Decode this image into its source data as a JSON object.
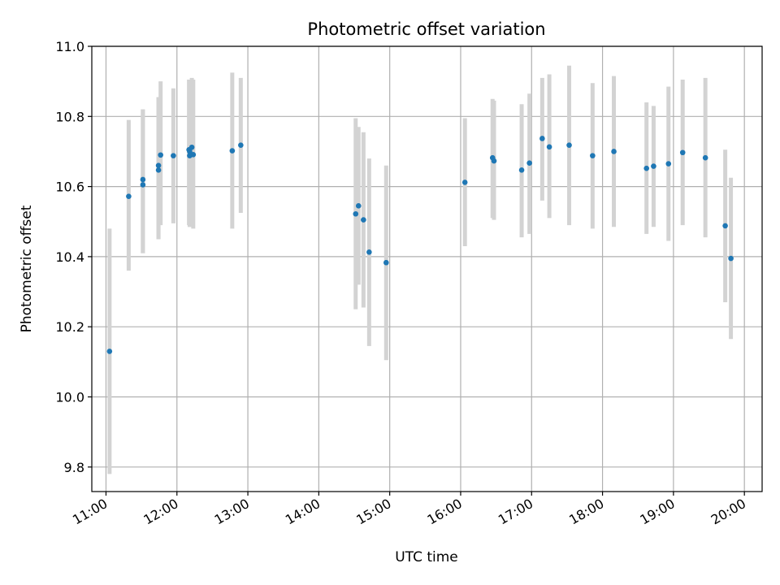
{
  "chart_data": {
    "type": "scatter",
    "title": "Photometric offset variation",
    "xlabel": "UTC time",
    "ylabel": "Photometric offset",
    "x_unit": "hour",
    "xlim": [
      10.8,
      20.25
    ],
    "ylim": [
      9.73,
      11.0
    ],
    "yticks": [
      9.8,
      10.0,
      10.2,
      10.4,
      10.6,
      10.8,
      11.0
    ],
    "ytick_labels": [
      "9.8",
      "10.0",
      "10.2",
      "10.4",
      "10.6",
      "10.8",
      "11.0"
    ],
    "xticks": [
      11,
      12,
      13,
      14,
      15,
      16,
      17,
      18,
      19,
      20
    ],
    "xtick_labels": [
      "11:00",
      "12:00",
      "13:00",
      "14:00",
      "15:00",
      "16:00",
      "17:00",
      "18:00",
      "19:00",
      "20:00"
    ],
    "grid": true,
    "colors": {
      "point": "#1f77b4",
      "errorbar": "#d3d3d3",
      "grid": "#b0b0b0"
    },
    "points": [
      {
        "x": 11.05,
        "y": 10.13,
        "lo": 9.78,
        "hi": 10.48
      },
      {
        "x": 11.32,
        "y": 10.572,
        "lo": 10.36,
        "hi": 10.79
      },
      {
        "x": 11.52,
        "y": 10.62,
        "lo": 10.41,
        "hi": 10.82
      },
      {
        "x": 11.52,
        "y": 10.605,
        "lo": 10.41,
        "hi": 10.82
      },
      {
        "x": 11.74,
        "y": 10.66,
        "lo": 10.45,
        "hi": 10.855
      },
      {
        "x": 11.74,
        "y": 10.647,
        "lo": 10.45,
        "hi": 10.855
      },
      {
        "x": 11.77,
        "y": 10.69,
        "lo": 10.49,
        "hi": 10.9
      },
      {
        "x": 11.95,
        "y": 10.688,
        "lo": 10.495,
        "hi": 10.88
      },
      {
        "x": 12.17,
        "y": 10.705,
        "lo": 10.49,
        "hi": 10.905
      },
      {
        "x": 12.18,
        "y": 10.688,
        "lo": 10.485,
        "hi": 10.905
      },
      {
        "x": 12.18,
        "y": 10.7,
        "lo": 10.485,
        "hi": 10.905
      },
      {
        "x": 12.21,
        "y": 10.712,
        "lo": 10.49,
        "hi": 10.91
      },
      {
        "x": 12.23,
        "y": 10.691,
        "lo": 10.48,
        "hi": 10.905
      },
      {
        "x": 12.78,
        "y": 10.702,
        "lo": 10.48,
        "hi": 10.925
      },
      {
        "x": 12.9,
        "y": 10.718,
        "lo": 10.525,
        "hi": 10.91
      },
      {
        "x": 14.52,
        "y": 10.522,
        "lo": 10.25,
        "hi": 10.795
      },
      {
        "x": 14.56,
        "y": 10.545,
        "lo": 10.32,
        "hi": 10.77
      },
      {
        "x": 14.63,
        "y": 10.505,
        "lo": 10.255,
        "hi": 10.755
      },
      {
        "x": 14.71,
        "y": 10.413,
        "lo": 10.145,
        "hi": 10.68
      },
      {
        "x": 14.95,
        "y": 10.383,
        "lo": 10.105,
        "hi": 10.66
      },
      {
        "x": 16.06,
        "y": 10.612,
        "lo": 10.43,
        "hi": 10.795
      },
      {
        "x": 16.45,
        "y": 10.682,
        "lo": 10.51,
        "hi": 10.85
      },
      {
        "x": 16.47,
        "y": 10.673,
        "lo": 10.505,
        "hi": 10.845
      },
      {
        "x": 16.86,
        "y": 10.647,
        "lo": 10.455,
        "hi": 10.835
      },
      {
        "x": 16.97,
        "y": 10.667,
        "lo": 10.465,
        "hi": 10.865
      },
      {
        "x": 17.15,
        "y": 10.737,
        "lo": 10.56,
        "hi": 10.91
      },
      {
        "x": 17.25,
        "y": 10.713,
        "lo": 10.51,
        "hi": 10.92
      },
      {
        "x": 17.53,
        "y": 10.718,
        "lo": 10.49,
        "hi": 10.945
      },
      {
        "x": 17.86,
        "y": 10.688,
        "lo": 10.48,
        "hi": 10.895
      },
      {
        "x": 18.16,
        "y": 10.7,
        "lo": 10.485,
        "hi": 10.915
      },
      {
        "x": 18.62,
        "y": 10.652,
        "lo": 10.465,
        "hi": 10.84
      },
      {
        "x": 18.72,
        "y": 10.658,
        "lo": 10.485,
        "hi": 10.83
      },
      {
        "x": 18.93,
        "y": 10.665,
        "lo": 10.445,
        "hi": 10.885
      },
      {
        "x": 19.13,
        "y": 10.697,
        "lo": 10.49,
        "hi": 10.905
      },
      {
        "x": 19.45,
        "y": 10.682,
        "lo": 10.455,
        "hi": 10.91
      },
      {
        "x": 19.73,
        "y": 10.488,
        "lo": 10.27,
        "hi": 10.705
      },
      {
        "x": 19.81,
        "y": 10.395,
        "lo": 10.165,
        "hi": 10.625
      }
    ]
  }
}
